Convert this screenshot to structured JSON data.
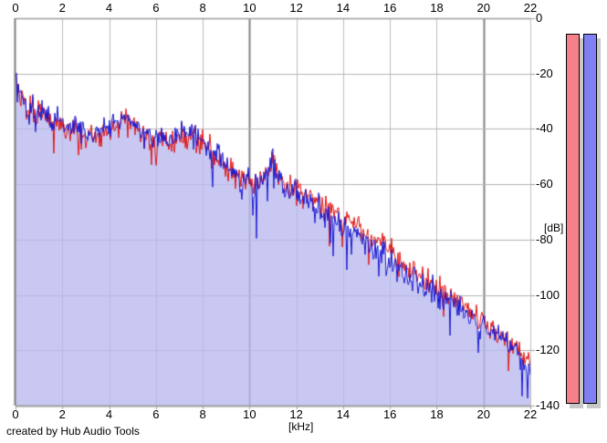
{
  "credit": "created by Hub Audio Tools",
  "chart_data": {
    "type": "area",
    "title": "",
    "xlabel": "[kHz]",
    "ylabel": "[dB]",
    "x_range": [
      0,
      22
    ],
    "y_range": [
      -140,
      0
    ],
    "grid": true,
    "x_tick_step_khz": 2,
    "y_tick_step_db": 20,
    "x_ticks": [
      "0",
      "2",
      "4",
      "6",
      "8",
      "10",
      "12",
      "14",
      "16",
      "18",
      "20",
      "22"
    ],
    "y_ticks": [
      "0",
      "-20",
      "-40",
      "-60",
      "-80",
      "-100",
      "-120",
      "-140"
    ],
    "emphasized_x_gridlines_khz": [
      10,
      20
    ],
    "series": [
      {
        "name": "left-channel-spectrum",
        "color": "#e11414",
        "deep_spikes": false,
        "points": [
          [
            0.0,
            -20
          ],
          [
            0.1,
            -27
          ],
          [
            0.3,
            -31
          ],
          [
            0.5,
            -32
          ],
          [
            0.7,
            -31
          ],
          [
            0.9,
            -35
          ],
          [
            1.1,
            -32
          ],
          [
            1.3,
            -36
          ],
          [
            1.5,
            -38
          ],
          [
            1.8,
            -37
          ],
          [
            2.0,
            -38
          ],
          [
            2.3,
            -41
          ],
          [
            2.6,
            -39
          ],
          [
            3.0,
            -42
          ],
          [
            3.4,
            -43
          ],
          [
            3.8,
            -41
          ],
          [
            4.2,
            -39
          ],
          [
            4.6,
            -36
          ],
          [
            5.0,
            -39
          ],
          [
            5.4,
            -42
          ],
          [
            5.8,
            -44
          ],
          [
            6.2,
            -43
          ],
          [
            6.6,
            -45
          ],
          [
            7.0,
            -43
          ],
          [
            7.4,
            -42
          ],
          [
            7.8,
            -44
          ],
          [
            8.2,
            -47
          ],
          [
            8.6,
            -50
          ],
          [
            9.0,
            -54
          ],
          [
            9.4,
            -57
          ],
          [
            9.8,
            -59
          ],
          [
            10.2,
            -61
          ],
          [
            10.5,
            -57
          ],
          [
            10.8,
            -55
          ],
          [
            11.0,
            -52
          ],
          [
            11.2,
            -56
          ],
          [
            11.5,
            -60
          ],
          [
            12.0,
            -62
          ],
          [
            12.5,
            -64
          ],
          [
            13.0,
            -66
          ],
          [
            13.5,
            -69
          ],
          [
            14.0,
            -72
          ],
          [
            14.5,
            -75
          ],
          [
            15.0,
            -78
          ],
          [
            15.5,
            -81
          ],
          [
            16.0,
            -84
          ],
          [
            16.5,
            -88
          ],
          [
            17.0,
            -91
          ],
          [
            17.5,
            -94
          ],
          [
            18.0,
            -97
          ],
          [
            18.5,
            -100
          ],
          [
            19.0,
            -104
          ],
          [
            19.5,
            -107
          ],
          [
            20.0,
            -110
          ],
          [
            20.5,
            -113
          ],
          [
            21.0,
            -116
          ],
          [
            21.5,
            -119
          ],
          [
            22.0,
            -124
          ]
        ]
      },
      {
        "name": "right-channel-spectrum",
        "color": "#1717d2",
        "fill_color": "rgba(185,185,238,0.78)",
        "deep_spikes": true,
        "points": [
          [
            0.0,
            -19
          ],
          [
            0.1,
            -26
          ],
          [
            0.3,
            -30
          ],
          [
            0.5,
            -33
          ],
          [
            0.7,
            -30
          ],
          [
            0.9,
            -34
          ],
          [
            1.1,
            -31
          ],
          [
            1.3,
            -35
          ],
          [
            1.5,
            -37
          ],
          [
            1.8,
            -38
          ],
          [
            2.0,
            -37
          ],
          [
            2.3,
            -40
          ],
          [
            2.6,
            -38
          ],
          [
            3.0,
            -41
          ],
          [
            3.4,
            -42
          ],
          [
            3.8,
            -40
          ],
          [
            4.2,
            -38
          ],
          [
            4.6,
            -35
          ],
          [
            5.0,
            -38
          ],
          [
            5.4,
            -41
          ],
          [
            5.8,
            -43
          ],
          [
            6.2,
            -42
          ],
          [
            6.6,
            -44
          ],
          [
            7.0,
            -42
          ],
          [
            7.4,
            -41
          ],
          [
            7.8,
            -43
          ],
          [
            8.2,
            -46
          ],
          [
            8.6,
            -49
          ],
          [
            9.0,
            -53
          ],
          [
            9.4,
            -56
          ],
          [
            9.8,
            -58
          ],
          [
            10.2,
            -62
          ],
          [
            10.5,
            -58
          ],
          [
            10.8,
            -54
          ],
          [
            11.0,
            -49
          ],
          [
            11.2,
            -57
          ],
          [
            11.5,
            -61
          ],
          [
            12.0,
            -64
          ],
          [
            12.5,
            -66
          ],
          [
            13.0,
            -69
          ],
          [
            13.5,
            -72
          ],
          [
            14.0,
            -75
          ],
          [
            14.5,
            -78
          ],
          [
            15.0,
            -82
          ],
          [
            15.5,
            -85
          ],
          [
            16.0,
            -88
          ],
          [
            16.5,
            -91
          ],
          [
            17.0,
            -94
          ],
          [
            17.5,
            -97
          ],
          [
            18.0,
            -99
          ],
          [
            18.5,
            -102
          ],
          [
            19.0,
            -105
          ],
          [
            19.5,
            -108
          ],
          [
            20.0,
            -111
          ],
          [
            20.5,
            -114
          ],
          [
            21.0,
            -117
          ],
          [
            21.5,
            -121
          ],
          [
            22.0,
            -127
          ]
        ]
      }
    ],
    "noise": {
      "seed": 12,
      "amplitude_db": 6,
      "shared_fraction": 0.6,
      "own_fraction": 0.7,
      "spike_probability": 0.05,
      "spike_extra_db": 12
    }
  },
  "meters": {
    "track_color": "#c8c8c8",
    "bars": [
      {
        "name": "left-channel-level-meter",
        "color": "#f5808a"
      },
      {
        "name": "right-channel-level-meter",
        "color": "#8080f2"
      }
    ]
  }
}
